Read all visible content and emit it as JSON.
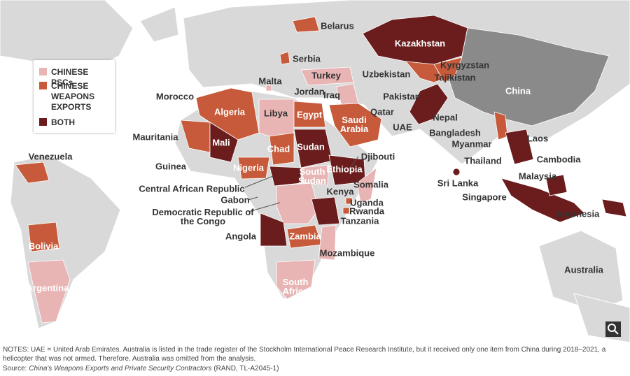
{
  "legend": [
    "CHINESE PSCs",
    "CHINESE WEAPONS EXPORTS",
    "BOTH"
  ],
  "labels": [
    "Belarus",
    "Serbia",
    "Malta",
    "Turkey",
    "Morocco",
    "Algeria",
    "Libya",
    "Egypt",
    "Jordan",
    "Iraq",
    "Saudi Arabia",
    "Qatar",
    "UAE",
    "Kazakhstan",
    "Uzbekistan",
    "Kyrgyzstan",
    "Tajikistan",
    "Pakistan",
    "China",
    "Nepal",
    "Bangladesh",
    "Myanmar",
    "Laos",
    "Thailand",
    "Cambodia",
    "Malaysia",
    "Sri Lanka",
    "Singapore",
    "Indonesia",
    "Australia",
    "Mauritania",
    "Mali",
    "Chad",
    "Sudan",
    "Djibouti",
    "Guinea",
    "Nigeria",
    "South Sudan",
    "Ethiopia",
    "Central African Republic",
    "Somalia",
    "Gabon",
    "Kenya",
    "Uganda",
    "Rwanda",
    "Tanzania",
    "Democratic Republic of the Congo",
    "Angola",
    "Zambia",
    "Mozambique",
    "South Africa",
    "Venezuela",
    "Bolivia",
    "Argentina"
  ],
  "notes": "NOTES: UAE = United Arab Emirates. Australia is listed in the trade register of the Stockholm International Peace Research Institute, but it received only one item from China during 2018–2021, a helicopter that was not armed. Therefore, Australia was omitted from the analysis.",
  "source": {
    "prefix": "Source: ",
    "title": "China's Weapons Exports and Private Security Contractors",
    "suffix": " (RAND, TL-A2045-1)"
  }
}
